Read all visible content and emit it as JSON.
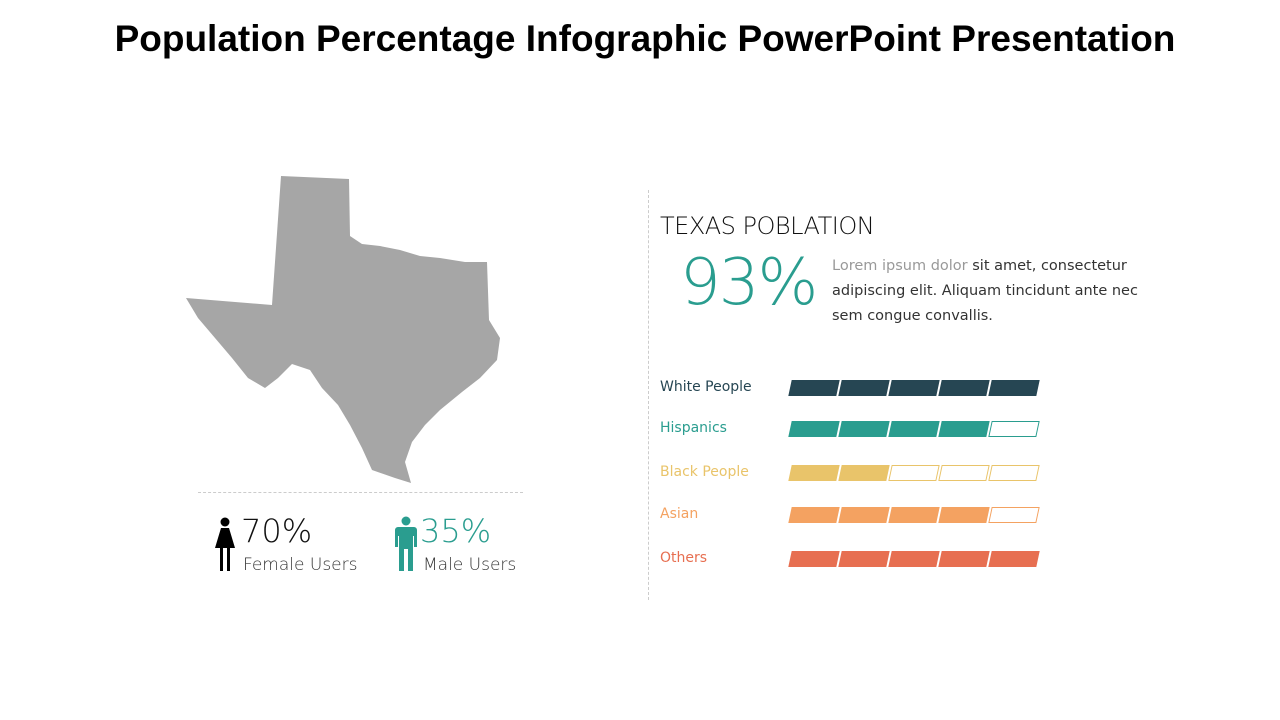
{
  "title": "Population Percentage Infographic PowerPoint Presentation",
  "female": {
    "value": "70%",
    "label": "Female Users",
    "icon": "female-user-icon"
  },
  "male": {
    "value": "35%",
    "label": "Male Users",
    "icon": "male-user-icon"
  },
  "section": {
    "heading": "TEXAS POBLATION",
    "percent": "93%",
    "desc_highlight": "Lorem ipsum dolor",
    "desc_rest": " sit amet, consectetur adipiscing elit. Aliquam tincidunt ante nec sem congue convallis."
  },
  "chart_data": {
    "type": "bar",
    "max": 5,
    "categories": [
      "White People",
      "Hispanics",
      "Black People",
      "Asian",
      "Others"
    ],
    "values": [
      5,
      4,
      2,
      4,
      5
    ],
    "colors": [
      "#264653",
      "#2a9d8f",
      "#e9c46a",
      "#f4a261",
      "#e76f51"
    ]
  }
}
